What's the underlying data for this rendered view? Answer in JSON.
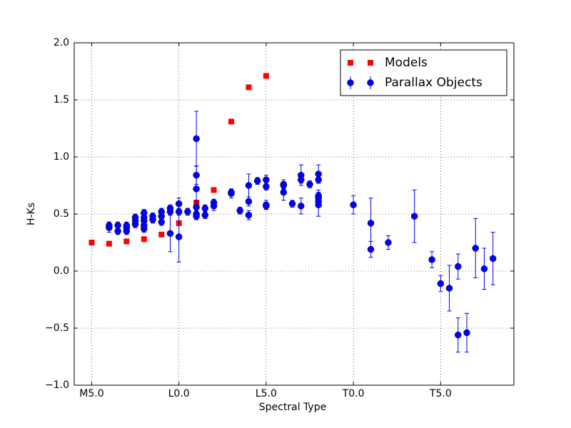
{
  "chart_data": {
    "type": "scatter",
    "xlabel": "Spectral Type",
    "ylabel": "H-Ks",
    "xlim": [
      4,
      29.2
    ],
    "ylim": [
      -1.0,
      2.0
    ],
    "xticks": [
      {
        "value": 5,
        "label": "M5.0"
      },
      {
        "value": 10,
        "label": "L0.0"
      },
      {
        "value": 15,
        "label": "L5.0"
      },
      {
        "value": 20,
        "label": "T0.0"
      },
      {
        "value": 25,
        "label": "T5.0"
      }
    ],
    "yticks": [
      {
        "value": -1,
        "label": "−1.0"
      },
      {
        "value": -0.5,
        "label": "−0.5"
      },
      {
        "value": 0,
        "label": "0.0"
      },
      0.5,
      {
        "value": 1,
        "label": "1.0"
      },
      1.5,
      {
        "value": 2,
        "label": "2.0"
      }
    ],
    "grid": true,
    "legend": "upper right",
    "series": [
      {
        "name": "Models",
        "color": "#ff0000",
        "marker": "square",
        "x": [
          5,
          6,
          7,
          8,
          9,
          10,
          11,
          12,
          13,
          14,
          15
        ],
        "values": [
          0.25,
          0.24,
          0.26,
          0.28,
          0.32,
          0.42,
          0.6,
          0.71,
          1.31,
          1.61,
          1.71
        ]
      },
      {
        "name": "Parallax Objects",
        "color": "#0000ff",
        "marker": "circle",
        "x": [
          6,
          6,
          6.5,
          6.5,
          7,
          7,
          7,
          7.5,
          7.5,
          7.5,
          8,
          8,
          8,
          8,
          8,
          8.5,
          8.5,
          9,
          9,
          9,
          9.5,
          9.5,
          9.5,
          10,
          10,
          10,
          10.5,
          11,
          11,
          11,
          11,
          11,
          11,
          11.5,
          11.5,
          12,
          12,
          13,
          13,
          13.5,
          14,
          14,
          14,
          14.5,
          15,
          15,
          15,
          15,
          16,
          16,
          16,
          16.5,
          17,
          17,
          17,
          17.5,
          18,
          18,
          18,
          18,
          18,
          18,
          20,
          21,
          21,
          22,
          23.5,
          24.5,
          25,
          25.5,
          26,
          26,
          26.5,
          27,
          27.5,
          28
        ],
        "values": [
          0.38,
          0.4,
          0.35,
          0.4,
          0.35,
          0.38,
          0.4,
          0.41,
          0.44,
          0.47,
          0.37,
          0.4,
          0.44,
          0.47,
          0.51,
          0.45,
          0.48,
          0.43,
          0.48,
          0.52,
          0.33,
          0.52,
          0.55,
          0.3,
          0.52,
          0.59,
          0.52,
          1.16,
          0.84,
          0.72,
          0.56,
          0.5,
          0.48,
          0.49,
          0.55,
          0.57,
          0.6,
          0.68,
          0.69,
          0.53,
          0.75,
          0.61,
          0.49,
          0.79,
          0.8,
          0.74,
          0.58,
          0.57,
          0.76,
          0.75,
          0.69,
          0.59,
          0.84,
          0.8,
          0.57,
          0.76,
          0.85,
          0.8,
          0.66,
          0.64,
          0.61,
          0.58,
          0.58,
          0.42,
          0.19,
          0.25,
          0.48,
          0.1,
          -0.11,
          -0.15,
          0.04,
          -0.56,
          -0.54,
          0.2,
          0.02,
          0.11
        ],
        "errors": [
          0.04,
          0.03,
          0.03,
          0.03,
          0.03,
          0.03,
          0.03,
          0.03,
          0.03,
          0.03,
          0.03,
          0.03,
          0.03,
          0.03,
          0.03,
          0.03,
          0.03,
          0.03,
          0.03,
          0.03,
          0.16,
          0.03,
          0.03,
          0.22,
          0.03,
          0.05,
          0.03,
          0.24,
          0.08,
          0.2,
          0.05,
          0.03,
          0.03,
          0.03,
          0.03,
          0.04,
          0.03,
          0.04,
          0.03,
          0.03,
          0.1,
          0.04,
          0.04,
          0.03,
          0.04,
          0.03,
          0.04,
          0.03,
          0.04,
          0.03,
          0.07,
          0.03,
          0.09,
          0.03,
          0.07,
          0.03,
          0.08,
          0.03,
          0.05,
          0.05,
          0.05,
          0.1,
          0.08,
          0.22,
          0.07,
          0.06,
          0.23,
          0.07,
          0.07,
          0.2,
          0.11,
          0.15,
          0.17,
          0.26,
          0.18,
          0.23
        ]
      }
    ]
  }
}
